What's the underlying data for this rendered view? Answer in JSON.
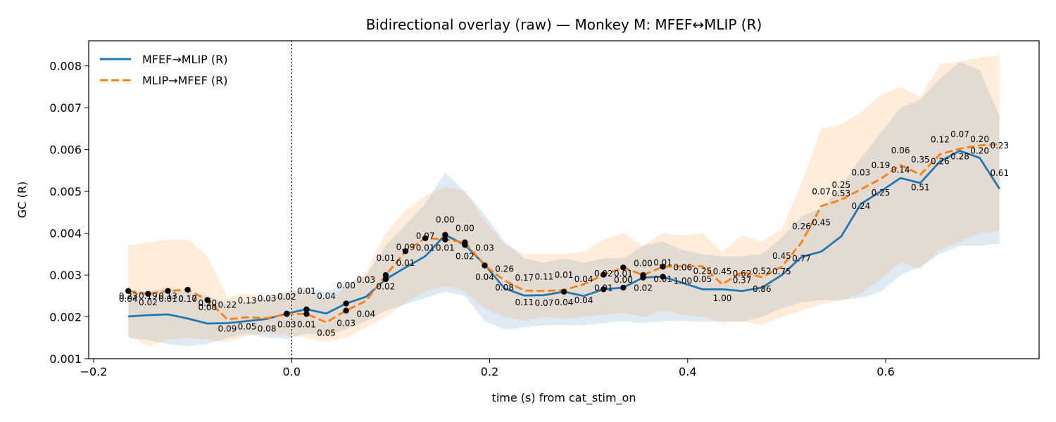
{
  "chart_data": {
    "type": "line",
    "title": "Bidirectional overlay (raw) — Monkey M: MFEF↔MLIP (R)",
    "xlabel": "time (s) from cat_stim_on",
    "ylabel": "GC (R)",
    "xlim": [
      -0.205,
      0.755
    ],
    "ylim": [
      0.001,
      0.0086
    ],
    "xticks": [
      -0.2,
      0.0,
      0.2,
      0.4,
      0.6
    ],
    "xtick_labels": [
      "−0.2",
      "0.0",
      "0.2",
      "0.4",
      "0.6"
    ],
    "yticks": [
      0.001,
      0.002,
      0.003,
      0.004,
      0.005,
      0.006,
      0.007,
      0.008
    ],
    "ytick_labels": [
      "0.001",
      "0.002",
      "0.003",
      "0.004",
      "0.005",
      "0.006",
      "0.007",
      "0.008"
    ],
    "vline_x": 0.0,
    "legend_position": "upper-left",
    "x": [
      -0.165,
      -0.145,
      -0.125,
      -0.105,
      -0.085,
      -0.065,
      -0.045,
      -0.025,
      -0.005,
      0.015,
      0.035,
      0.055,
      0.075,
      0.095,
      0.115,
      0.135,
      0.155,
      0.175,
      0.195,
      0.215,
      0.235,
      0.255,
      0.275,
      0.295,
      0.315,
      0.335,
      0.355,
      0.375,
      0.395,
      0.415,
      0.435,
      0.455,
      0.475,
      0.495,
      0.515,
      0.535,
      0.555,
      0.575,
      0.595,
      0.615,
      0.635,
      0.655,
      0.675,
      0.695,
      0.715
    ],
    "series": [
      {
        "name": "MFEF→MLIP (R)",
        "color": "#1f77b4",
        "style": "solid",
        "values": [
          0.00201,
          0.00204,
          0.00206,
          0.00196,
          0.00184,
          0.00185,
          0.0019,
          0.00195,
          0.00208,
          0.00218,
          0.00208,
          0.00232,
          0.00248,
          0.0029,
          0.00318,
          0.00345,
          0.00396,
          0.00372,
          0.00325,
          0.00268,
          0.00251,
          0.00252,
          0.0026,
          0.0025,
          0.00266,
          0.0027,
          0.00294,
          0.00296,
          0.00281,
          0.00266,
          0.00266,
          0.00262,
          0.0027,
          0.003,
          0.00343,
          0.00356,
          0.00392,
          0.0047,
          0.005,
          0.00532,
          0.0052,
          0.00572,
          0.00597,
          0.0058,
          0.00506
        ],
        "lower": [
          0.0015,
          0.00145,
          0.00135,
          0.0013,
          0.00135,
          0.0015,
          0.0016,
          0.0015,
          0.00148,
          0.0016,
          0.00155,
          0.0017,
          0.0019,
          0.00215,
          0.0023,
          0.00245,
          0.0026,
          0.0025,
          0.0019,
          0.0017,
          0.00175,
          0.0018,
          0.0018,
          0.0018,
          0.00185,
          0.0019,
          0.00185,
          0.0019,
          0.0019,
          0.00188,
          0.0019,
          0.00188,
          0.002,
          0.0022,
          0.00235,
          0.0024,
          0.0024,
          0.00245,
          0.0026,
          0.003,
          0.0032,
          0.0035,
          0.0037,
          0.0037,
          0.00375
        ],
        "upper": [
          0.0026,
          0.0026,
          0.0027,
          0.0026,
          0.0025,
          0.0023,
          0.00235,
          0.00245,
          0.0026,
          0.0027,
          0.0026,
          0.0028,
          0.003,
          0.0037,
          0.0042,
          0.0047,
          0.00545,
          0.005,
          0.00445,
          0.0038,
          0.0034,
          0.0033,
          0.0034,
          0.0033,
          0.0034,
          0.0034,
          0.0037,
          0.0038,
          0.0036,
          0.0035,
          0.00345,
          0.00345,
          0.0035,
          0.0039,
          0.0044,
          0.0046,
          0.0051,
          0.0058,
          0.0064,
          0.007,
          0.0072,
          0.0077,
          0.0081,
          0.0079,
          0.0068
        ]
      },
      {
        "name": "MLIP→MFEF (R)",
        "color": "#ff7f0e",
        "style": "dashed",
        "values": [
          0.00262,
          0.00255,
          0.00262,
          0.00265,
          0.0024,
          0.00194,
          0.00199,
          0.00197,
          0.00207,
          0.00207,
          0.00187,
          0.00215,
          0.00238,
          0.003,
          0.00357,
          0.00388,
          0.00385,
          0.00378,
          0.00323,
          0.00287,
          0.00263,
          0.00262,
          0.00264,
          0.00278,
          0.00301,
          0.00318,
          0.003,
          0.0032,
          0.00321,
          0.00321,
          0.00278,
          0.00307,
          0.00295,
          0.0032,
          0.00378,
          0.00465,
          0.0048,
          0.00505,
          0.0053,
          0.00563,
          0.0054,
          0.00589,
          0.00602,
          0.0061,
          0.00613
        ],
        "lower": [
          0.00155,
          0.0013,
          0.00145,
          0.0015,
          0.00145,
          0.0014,
          0.00155,
          0.0016,
          0.00155,
          0.0015,
          0.0014,
          0.0015,
          0.00175,
          0.002,
          0.00235,
          0.0026,
          0.00275,
          0.0026,
          0.0022,
          0.002,
          0.0019,
          0.002,
          0.00195,
          0.002,
          0.00205,
          0.0021,
          0.002,
          0.00215,
          0.00205,
          0.002,
          0.00185,
          0.0019,
          0.0018,
          0.002,
          0.00215,
          0.0023,
          0.0024,
          0.00255,
          0.0029,
          0.0033,
          0.00315,
          0.0036,
          0.0038,
          0.004,
          0.00405
        ],
        "upper": [
          0.00372,
          0.00378,
          0.00385,
          0.00385,
          0.00345,
          0.00248,
          0.00255,
          0.00245,
          0.0026,
          0.00265,
          0.0024,
          0.0027,
          0.00305,
          0.004,
          0.00455,
          0.0049,
          0.0051,
          0.005,
          0.0043,
          0.00375,
          0.0035,
          0.0035,
          0.0035,
          0.00355,
          0.00385,
          0.004,
          0.0037,
          0.004,
          0.00395,
          0.004,
          0.00355,
          0.00395,
          0.0038,
          0.0041,
          0.0052,
          0.0065,
          0.0066,
          0.0069,
          0.0073,
          0.0075,
          0.00725,
          0.00805,
          0.0081,
          0.0082,
          0.00825
        ]
      }
    ],
    "significant_points": {
      "x": [
        -0.165,
        -0.145,
        -0.125,
        -0.105,
        -0.085,
        -0.005,
        0.015,
        0.055,
        0.095,
        0.115,
        0.135,
        0.155,
        0.175,
        0.195,
        0.275,
        0.315,
        0.335,
        0.355,
        0.375
      ],
      "mfef_to_mlip": [
        null,
        null,
        null,
        null,
        null,
        0.00208,
        0.00218,
        0.00232,
        0.0029,
        null,
        null,
        0.00396,
        0.00372,
        null,
        0.0026,
        0.00266,
        0.0027,
        0.00294,
        0.00296
      ],
      "mlip_to_mfef": [
        0.00262,
        0.00255,
        0.00262,
        0.00265,
        0.0024,
        0.00207,
        0.00207,
        0.00215,
        0.003,
        0.00357,
        0.00388,
        0.00385,
        0.00378,
        0.00323,
        null,
        0.00301,
        0.00318,
        0.003,
        0.0032
      ]
    },
    "p_value_labels": [
      {
        "text": "0.23",
        "x": -0.165,
        "y": 0.00243
      },
      {
        "text": "0.04",
        "x": -0.165,
        "y": 0.00236
      },
      {
        "text": "0.19",
        "x": -0.145,
        "y": 0.00243
      },
      {
        "text": "0.02",
        "x": -0.145,
        "y": 0.00228
      },
      {
        "text": "0.13",
        "x": -0.125,
        "y": 0.00243
      },
      {
        "text": "0.01",
        "x": -0.125,
        "y": 0.00236
      },
      {
        "text": "0.17",
        "x": -0.105,
        "y": 0.00236
      },
      {
        "text": "0.10",
        "x": -0.105,
        "y": 0.00236
      },
      {
        "text": "0.20",
        "x": -0.085,
        "y": 0.00226
      },
      {
        "text": "0.00",
        "x": -0.085,
        "y": 0.00216
      },
      {
        "text": "0.22",
        "x": -0.065,
        "y": 0.00222
      },
      {
        "text": "0.09",
        "x": -0.065,
        "y": 0.00165
      },
      {
        "text": "0.13",
        "x": -0.045,
        "y": 0.00232
      },
      {
        "text": "0.05",
        "x": -0.045,
        "y": 0.0017
      },
      {
        "text": "0.03",
        "x": -0.025,
        "y": 0.00237
      },
      {
        "text": "0.08",
        "x": -0.025,
        "y": 0.00165
      },
      {
        "text": "0.02",
        "x": -0.005,
        "y": 0.00241
      },
      {
        "text": "0.03",
        "x": -0.005,
        "y": 0.00175
      },
      {
        "text": "0.01",
        "x": 0.015,
        "y": 0.00255
      },
      {
        "text": "0.01",
        "x": 0.015,
        "y": 0.00175
      },
      {
        "text": "0.04",
        "x": 0.035,
        "y": 0.00243
      },
      {
        "text": "0.05",
        "x": 0.035,
        "y": 0.00155
      },
      {
        "text": "0.00",
        "x": 0.055,
        "y": 0.00268
      },
      {
        "text": "0.03",
        "x": 0.055,
        "y": 0.00178
      },
      {
        "text": "0.03",
        "x": 0.075,
        "y": 0.00282
      },
      {
        "text": "0.04",
        "x": 0.075,
        "y": 0.002
      },
      {
        "text": "0.01",
        "x": 0.095,
        "y": 0.00334
      },
      {
        "text": "0.02",
        "x": 0.095,
        "y": 0.00266
      },
      {
        "text": "0.09",
        "x": 0.115,
        "y": 0.0036
      },
      {
        "text": "0.01",
        "x": 0.115,
        "y": 0.00322
      },
      {
        "text": "0.07",
        "x": 0.135,
        "y": 0.00387
      },
      {
        "text": "0.01",
        "x": 0.135,
        "y": 0.00358
      },
      {
        "text": "0.00",
        "x": 0.155,
        "y": 0.00425
      },
      {
        "text": "0.01",
        "x": 0.155,
        "y": 0.00358
      },
      {
        "text": "0.00",
        "x": 0.175,
        "y": 0.00405
      },
      {
        "text": "0.02",
        "x": 0.175,
        "y": 0.00338
      },
      {
        "text": "0.03",
        "x": 0.195,
        "y": 0.00358
      },
      {
        "text": "0.04",
        "x": 0.195,
        "y": 0.00288
      },
      {
        "text": "0.26",
        "x": 0.215,
        "y": 0.00308
      },
      {
        "text": "0.08",
        "x": 0.215,
        "y": 0.00263
      },
      {
        "text": "0.17",
        "x": 0.235,
        "y": 0.00287
      },
      {
        "text": "0.11",
        "x": 0.235,
        "y": 0.00228
      },
      {
        "text": "0.11",
        "x": 0.255,
        "y": 0.00289
      },
      {
        "text": "0.07",
        "x": 0.255,
        "y": 0.00226
      },
      {
        "text": "0.01",
        "x": 0.275,
        "y": 0.00293
      },
      {
        "text": "0.04",
        "x": 0.275,
        "y": 0.00228
      },
      {
        "text": "0.04",
        "x": 0.295,
        "y": 0.00283
      },
      {
        "text": "0.04",
        "x": 0.295,
        "y": 0.00233
      },
      {
        "text": "0.02",
        "x": 0.315,
        "y": 0.00297
      },
      {
        "text": "0.01",
        "x": 0.315,
        "y": 0.00262
      },
      {
        "text": "0.01",
        "x": 0.335,
        "y": 0.00297
      },
      {
        "text": "0.00",
        "x": 0.335,
        "y": 0.00282
      },
      {
        "text": "0.00",
        "x": 0.355,
        "y": 0.00321
      },
      {
        "text": "0.02",
        "x": 0.355,
        "y": 0.00262
      },
      {
        "text": "0.01",
        "x": 0.375,
        "y": 0.00323
      },
      {
        "text": "0.01",
        "x": 0.375,
        "y": 0.00283
      },
      {
        "text": "0.06",
        "x": 0.395,
        "y": 0.00311
      },
      {
        "text": "1.00",
        "x": 0.395,
        "y": 0.00279
      },
      {
        "text": "0.25",
        "x": 0.415,
        "y": 0.00303
      },
      {
        "text": "0.05",
        "x": 0.415,
        "y": 0.00283
      },
      {
        "text": "0.45",
        "x": 0.435,
        "y": 0.00302
      },
      {
        "text": "1.00",
        "x": 0.435,
        "y": 0.00238
      },
      {
        "text": "0.62",
        "x": 0.455,
        "y": 0.00297
      },
      {
        "text": "0.37",
        "x": 0.455,
        "y": 0.00281
      },
      {
        "text": "0.52",
        "x": 0.475,
        "y": 0.00303
      },
      {
        "text": "0.86",
        "x": 0.475,
        "y": 0.0026
      },
      {
        "text": "0.45",
        "x": 0.495,
        "y": 0.00339
      },
      {
        "text": "0.75",
        "x": 0.495,
        "y": 0.00302
      },
      {
        "text": "0.26",
        "x": 0.515,
        "y": 0.00409
      },
      {
        "text": "0.77",
        "x": 0.515,
        "y": 0.00333
      },
      {
        "text": "0.07",
        "x": 0.535,
        "y": 0.00493
      },
      {
        "text": "0.45",
        "x": 0.535,
        "y": 0.00419
      },
      {
        "text": "0.25",
        "x": 0.555,
        "y": 0.00509
      },
      {
        "text": "0.53",
        "x": 0.555,
        "y": 0.00488
      },
      {
        "text": "0.03",
        "x": 0.575,
        "y": 0.00538
      },
      {
        "text": "0.24",
        "x": 0.575,
        "y": 0.00458
      },
      {
        "text": "0.19",
        "x": 0.595,
        "y": 0.00556
      },
      {
        "text": "0.25",
        "x": 0.595,
        "y": 0.0049
      },
      {
        "text": "0.06",
        "x": 0.615,
        "y": 0.00591
      },
      {
        "text": "0.14",
        "x": 0.615,
        "y": 0.00545
      },
      {
        "text": "0.35",
        "x": 0.635,
        "y": 0.00569
      },
      {
        "text": "0.51",
        "x": 0.635,
        "y": 0.00503
      },
      {
        "text": "0.12",
        "x": 0.655,
        "y": 0.00617
      },
      {
        "text": "0.26",
        "x": 0.655,
        "y": 0.00565
      },
      {
        "text": "0.07",
        "x": 0.675,
        "y": 0.0063
      },
      {
        "text": "0.28",
        "x": 0.675,
        "y": 0.00577
      },
      {
        "text": "0.20",
        "x": 0.695,
        "y": 0.00618
      },
      {
        "text": "0.20",
        "x": 0.695,
        "y": 0.0059
      },
      {
        "text": "0.23",
        "x": 0.715,
        "y": 0.00603
      },
      {
        "text": "0.61",
        "x": 0.715,
        "y": 0.00537
      }
    ]
  }
}
